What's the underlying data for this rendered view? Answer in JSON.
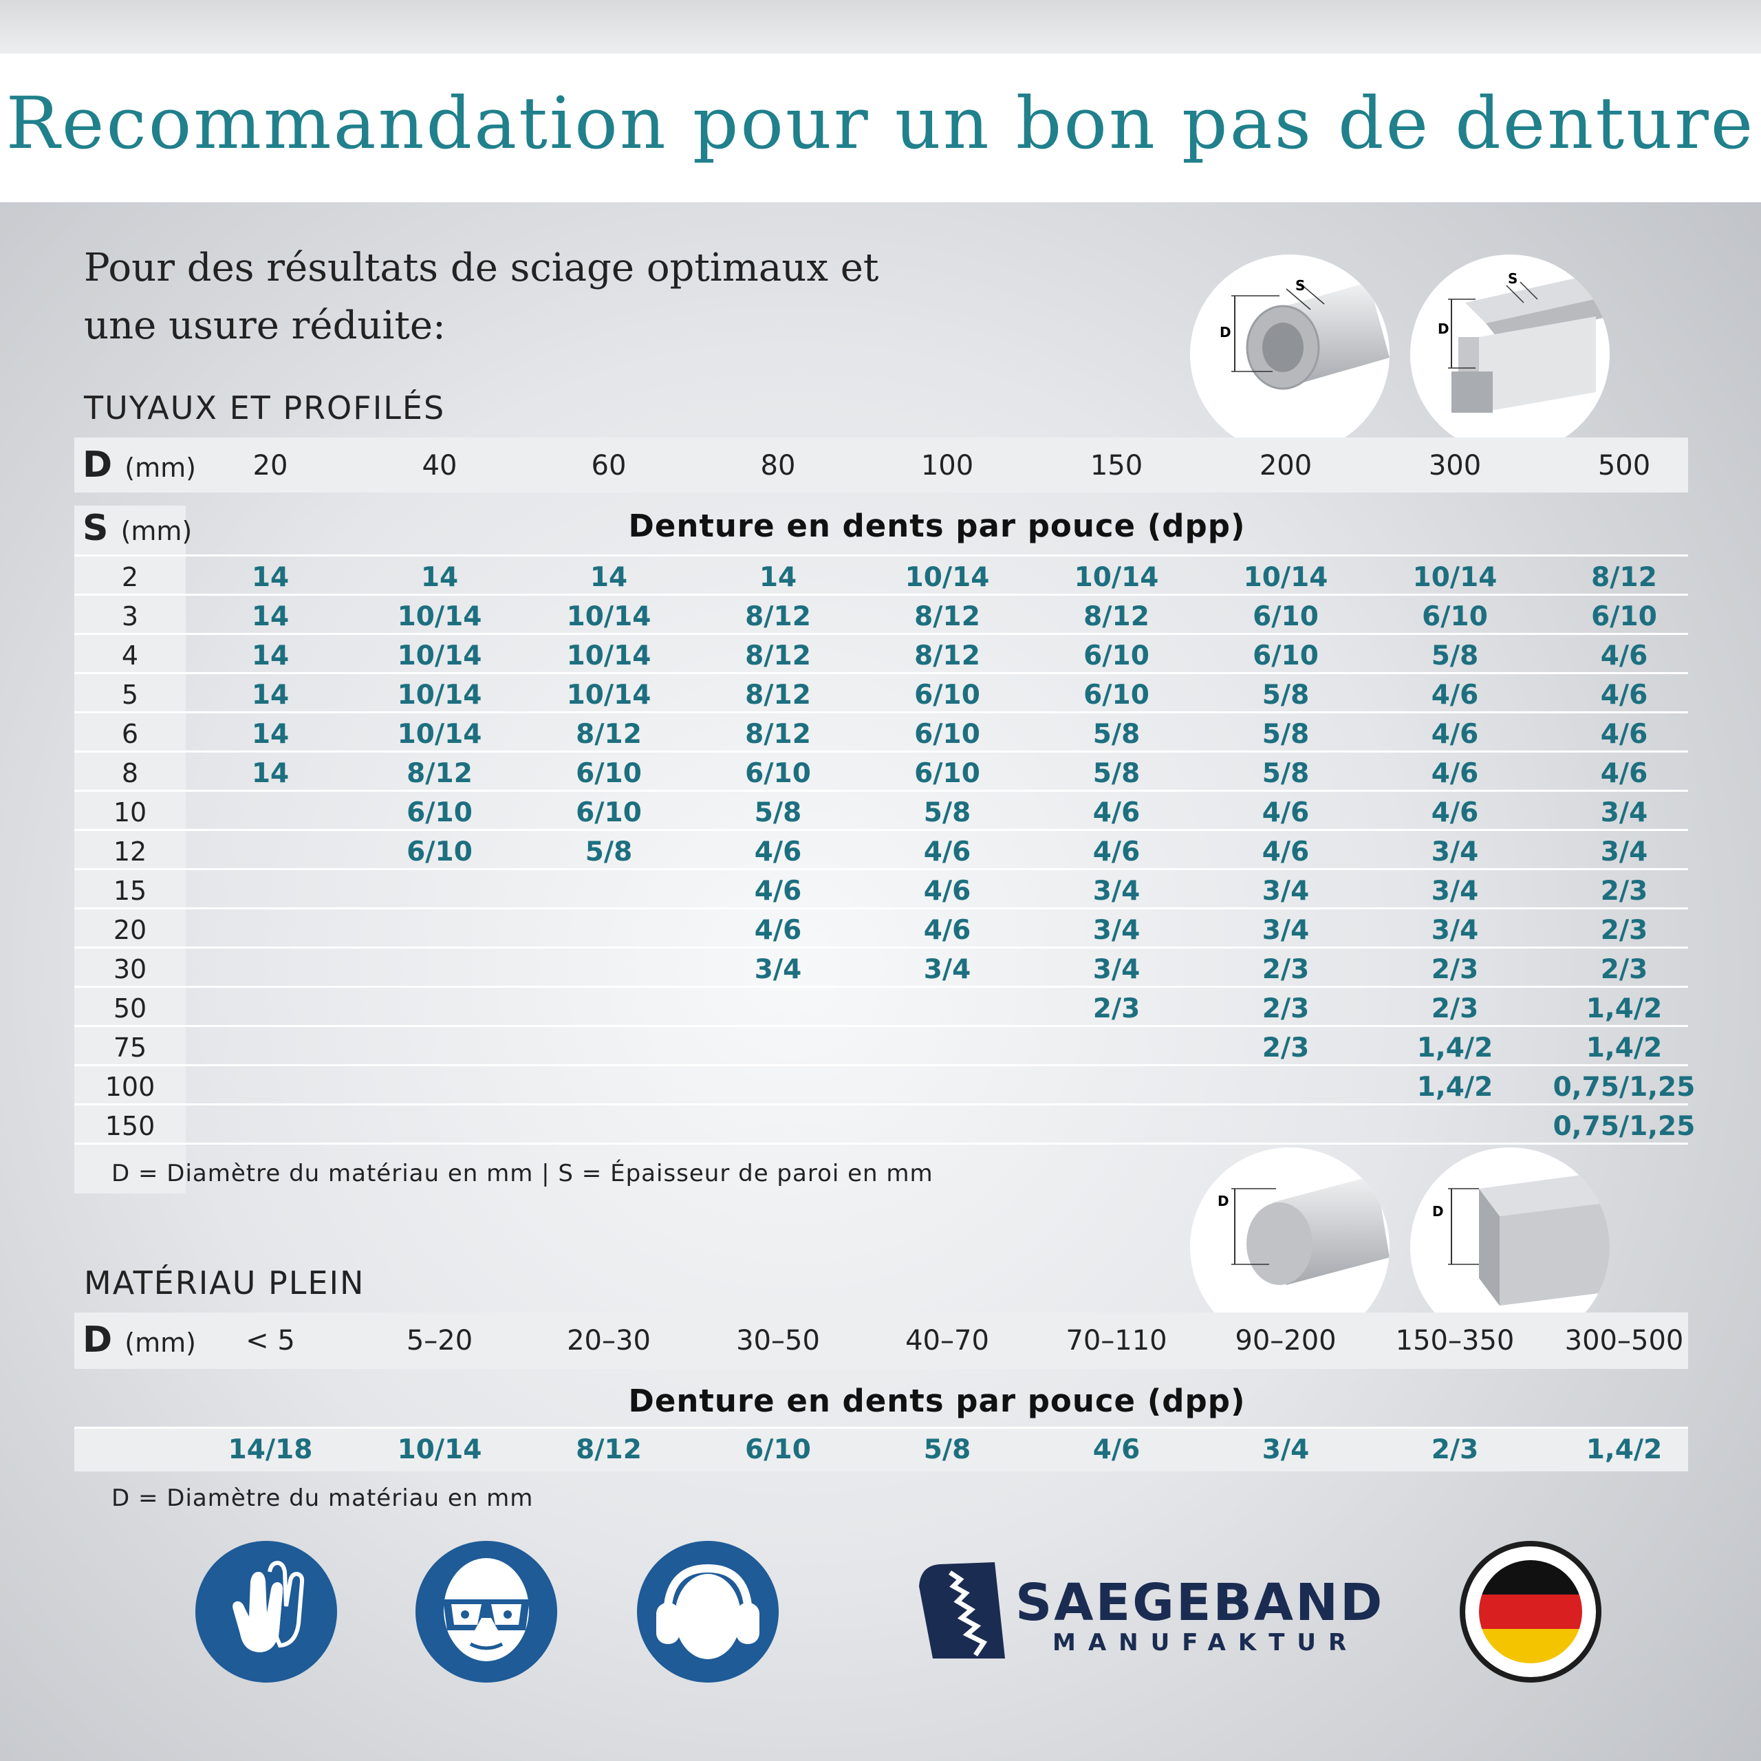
{
  "title": "Recommandation pour un bon pas de denture",
  "intro": {
    "line1": "Pour des résultats de sciage optimaux et",
    "line2": "une usure réduite:"
  },
  "tubes": {
    "heading": "TUYAUX ET PROFILÉS",
    "d_label": "D",
    "d_unit": "(mm)",
    "s_label": "S",
    "s_unit": "(mm)",
    "subheading": "Denture en dents par pouce (dpp)",
    "d_values": [
      "20",
      "40",
      "60",
      "80",
      "100",
      "150",
      "200",
      "300",
      "500"
    ],
    "rows": [
      {
        "s": "2",
        "v": [
          "14",
          "14",
          "14",
          "14",
          "10/14",
          "10/14",
          "10/14",
          "10/14",
          "8/12"
        ]
      },
      {
        "s": "3",
        "v": [
          "14",
          "10/14",
          "10/14",
          "8/12",
          "8/12",
          "8/12",
          "6/10",
          "6/10",
          "6/10"
        ]
      },
      {
        "s": "4",
        "v": [
          "14",
          "10/14",
          "10/14",
          "8/12",
          "8/12",
          "6/10",
          "6/10",
          "5/8",
          "4/6"
        ]
      },
      {
        "s": "5",
        "v": [
          "14",
          "10/14",
          "10/14",
          "8/12",
          "6/10",
          "6/10",
          "5/8",
          "4/6",
          "4/6"
        ]
      },
      {
        "s": "6",
        "v": [
          "14",
          "10/14",
          "8/12",
          "8/12",
          "6/10",
          "5/8",
          "5/8",
          "4/6",
          "4/6"
        ]
      },
      {
        "s": "8",
        "v": [
          "14",
          "8/12",
          "6/10",
          "6/10",
          "6/10",
          "5/8",
          "5/8",
          "4/6",
          "4/6"
        ]
      },
      {
        "s": "10",
        "v": [
          "",
          "6/10",
          "6/10",
          "5/8",
          "5/8",
          "4/6",
          "4/6",
          "4/6",
          "3/4"
        ]
      },
      {
        "s": "12",
        "v": [
          "",
          "6/10",
          "5/8",
          "4/6",
          "4/6",
          "4/6",
          "4/6",
          "3/4",
          "3/4"
        ]
      },
      {
        "s": "15",
        "v": [
          "",
          "",
          "",
          "4/6",
          "4/6",
          "3/4",
          "3/4",
          "3/4",
          "2/3"
        ]
      },
      {
        "s": "20",
        "v": [
          "",
          "",
          "",
          "4/6",
          "4/6",
          "3/4",
          "3/4",
          "3/4",
          "2/3"
        ]
      },
      {
        "s": "30",
        "v": [
          "",
          "",
          "",
          "3/4",
          "3/4",
          "3/4",
          "2/3",
          "2/3",
          "2/3"
        ]
      },
      {
        "s": "50",
        "v": [
          "",
          "",
          "",
          "",
          "",
          "2/3",
          "2/3",
          "2/3",
          "1,4/2"
        ]
      },
      {
        "s": "75",
        "v": [
          "",
          "",
          "",
          "",
          "",
          "",
          "2/3",
          "1,4/2",
          "1,4/2"
        ]
      },
      {
        "s": "100",
        "v": [
          "",
          "",
          "",
          "",
          "",
          "",
          "",
          "1,4/2",
          "0,75/1,25"
        ]
      },
      {
        "s": "150",
        "v": [
          "",
          "",
          "",
          "",
          "",
          "",
          "",
          "",
          "0,75/1,25"
        ]
      }
    ],
    "note": "D = Diamètre du matériau en mm | S = Épaisseur de paroi en mm"
  },
  "solid": {
    "heading": "MATÉRIAU PLEIN",
    "d_label": "D",
    "d_unit": "(mm)",
    "d_values": [
      "< 5",
      "5–20",
      "20–30",
      "30–50",
      "40–70",
      "70–110",
      "90–200",
      "150–350",
      "300–500"
    ],
    "subheading": "Denture en dents par pouce (dpp)",
    "values": [
      "14/18",
      "10/14",
      "8/12",
      "6/10",
      "5/8",
      "4/6",
      "3/4",
      "2/3",
      "1,4/2"
    ],
    "note": "D = Diamètre du matériau en mm"
  },
  "diagram_labels": {
    "s": "S",
    "d": "D"
  },
  "brand": {
    "name": "SAEGEBAND",
    "sub": "MANUFAKTUR",
    "color": "#1b2c52"
  },
  "colors": {
    "title": "#20808c",
    "values": "#1d6f7f",
    "sign_blue": "#1e5b97"
  },
  "icons": [
    "gloves-icon",
    "safety-goggles-icon",
    "ear-protection-icon",
    "saw-blade-logo-icon",
    "german-flag-icon"
  ]
}
